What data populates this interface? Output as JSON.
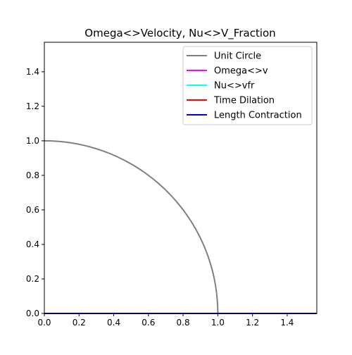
{
  "chart_data": {
    "type": "line",
    "title": "Omega<>Velocity, Nu<>V_Fraction",
    "xlabel": "",
    "ylabel": "",
    "xlim": [
      0,
      1.5708
    ],
    "ylim": [
      0,
      1.5708
    ],
    "x_ticks": [
      0.0,
      0.2,
      0.4,
      0.6,
      0.8,
      1.0,
      1.2,
      1.4
    ],
    "y_ticks": [
      0.0,
      0.2,
      0.4,
      0.6,
      0.8,
      1.0,
      1.2,
      1.4
    ],
    "x_tick_labels": [
      "0.0",
      "0.2",
      "0.4",
      "0.6",
      "0.8",
      "1.0",
      "1.2",
      "1.4"
    ],
    "y_tick_labels": [
      "0.0",
      "0.2",
      "0.4",
      "0.6",
      "0.8",
      "1.0",
      "1.2",
      "1.4"
    ],
    "grid": false,
    "legend_position": "top-right",
    "series": [
      {
        "name": "Unit Circle",
        "color": "#808080",
        "kind": "quarter-circle",
        "radius": 1.0
      },
      {
        "name": "Omega<>v",
        "color": "#ff00ff",
        "x": [
          0,
          1.5708
        ],
        "y": [
          0,
          0
        ]
      },
      {
        "name": "Nu<>vfr",
        "color": "#00ffff",
        "x": [
          0,
          1.5708
        ],
        "y": [
          0,
          0
        ]
      },
      {
        "name": "Time Dilation",
        "color": "#ff0000",
        "x": [
          0,
          1.5708
        ],
        "y": [
          0,
          0
        ]
      },
      {
        "name": "Length Contraction",
        "color": "#0000cc",
        "x": [
          0,
          1.5708
        ],
        "y": [
          0,
          0
        ]
      }
    ]
  }
}
